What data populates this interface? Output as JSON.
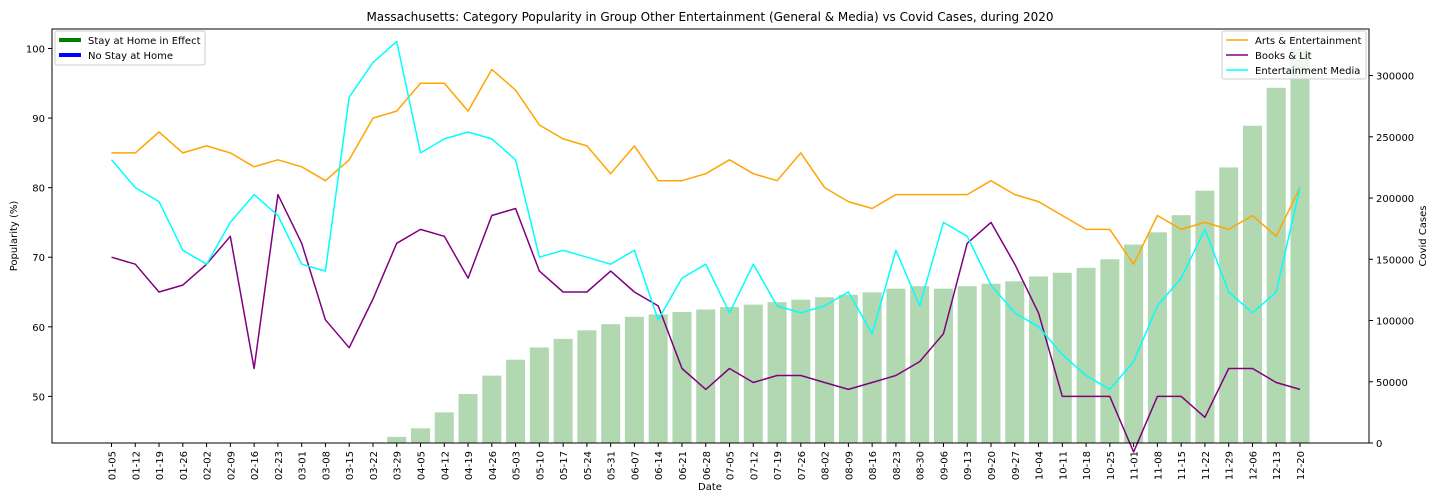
{
  "chart_data": {
    "type": "line",
    "title": "Massachusetts: Category Popularity in Group Other Entertainment (General & Media) vs Covid Cases, during 2020",
    "xlabel": "Date",
    "ylabel": "Popularity (%)",
    "y2label": "Covid Cases",
    "ylim": [
      43.3,
      102.8
    ],
    "y2lim": [
      0,
      338000
    ],
    "yticks": [
      50,
      60,
      70,
      80,
      90,
      100
    ],
    "y2ticks": [
      0,
      50000,
      100000,
      150000,
      200000,
      250000,
      300000
    ],
    "y2ticklabels": [
      "0",
      "50000",
      "100000",
      "150000",
      "200000",
      "250000",
      "300000"
    ],
    "categories": [
      "01-05",
      "01-12",
      "01-19",
      "01-26",
      "02-02",
      "02-09",
      "02-16",
      "02-23",
      "03-01",
      "03-08",
      "03-15",
      "03-22",
      "03-29",
      "04-05",
      "04-12",
      "04-19",
      "04-26",
      "05-03",
      "05-10",
      "05-17",
      "05-24",
      "05-31",
      "06-07",
      "06-14",
      "06-21",
      "06-28",
      "07-05",
      "07-12",
      "07-19",
      "07-26",
      "08-02",
      "08-09",
      "08-16",
      "08-23",
      "08-30",
      "09-06",
      "09-13",
      "09-20",
      "09-27",
      "10-04",
      "10-11",
      "10-18",
      "10-25",
      "11-01",
      "11-08",
      "11-15",
      "11-22",
      "11-29",
      "12-06",
      "12-13",
      "12-20"
    ],
    "series": [
      {
        "name": "Arts & Entertainment",
        "color": "#ffa500",
        "values": [
          85,
          85,
          88,
          85,
          86,
          85,
          83,
          84,
          83,
          81,
          84,
          90,
          91,
          95,
          95,
          91,
          97,
          94,
          89,
          87,
          86,
          82,
          86,
          81,
          81,
          82,
          84,
          82,
          81,
          85,
          80,
          78,
          77,
          79,
          79,
          79,
          79,
          81,
          79,
          78,
          76,
          74,
          74,
          69,
          76,
          74,
          75,
          74,
          76,
          73,
          80
        ]
      },
      {
        "name": "Books & Lit",
        "color": "#800080",
        "values": [
          70,
          69,
          65,
          66,
          69,
          73,
          54,
          79,
          72,
          61,
          57,
          64,
          72,
          74,
          73,
          67,
          76,
          77,
          68,
          65,
          65,
          68,
          65,
          63,
          54,
          51,
          54,
          52,
          53,
          53,
          52,
          51,
          52,
          53,
          55,
          59,
          72,
          75,
          69,
          62,
          50,
          50,
          50,
          42,
          50,
          50,
          47,
          54,
          54,
          52,
          51
        ]
      },
      {
        "name": "Entertainment Media",
        "color": "#00ffff",
        "values": [
          84,
          80,
          78,
          71,
          69,
          75,
          79,
          76,
          69,
          68,
          93,
          98,
          101,
          85,
          87,
          88,
          87,
          84,
          70,
          71,
          70,
          69,
          71,
          61,
          67,
          69,
          62,
          69,
          63,
          62,
          63,
          65,
          59,
          71,
          63,
          75,
          73,
          66,
          62,
          60,
          56,
          53,
          51,
          55,
          63,
          67,
          74,
          65,
          62,
          65,
          80
        ]
      }
    ],
    "bar_series": {
      "name": "Covid Cases",
      "color": "#b2d8b2",
      "values": [
        0,
        0,
        0,
        0,
        0,
        0,
        0,
        0,
        0,
        0,
        0,
        500,
        5000,
        12000,
        25000,
        40000,
        55000,
        68000,
        78000,
        85000,
        92000,
        97000,
        103000,
        105000,
        107000,
        109000,
        111000,
        113000,
        115000,
        117000,
        119000,
        121000,
        123000,
        126000,
        128000,
        126000,
        128000,
        130000,
        132000,
        136000,
        139000,
        143000,
        150000,
        162000,
        172000,
        186000,
        206000,
        225000,
        259000,
        290000,
        322000
      ]
    },
    "legend_left": [
      {
        "label": "Stay at Home in Effect",
        "color": "#008000"
      },
      {
        "label": "No Stay at Home",
        "color": "#0000ff"
      }
    ],
    "legend_left_placement": "upper-left",
    "legend_right_placement": "upper-right",
    "grid": false
  }
}
